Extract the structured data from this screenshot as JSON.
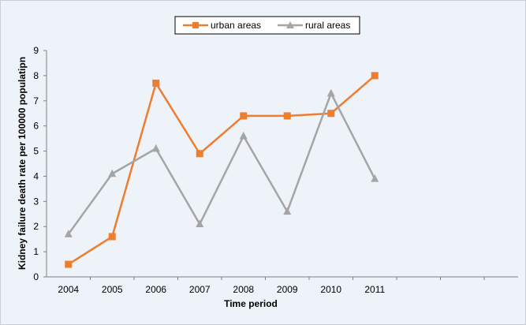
{
  "chart_data": {
    "type": "line",
    "categories": [
      "2004",
      "2005",
      "2006",
      "2007",
      "2008",
      "2009",
      "2010",
      "2011"
    ],
    "series": [
      {
        "name": "urban areas",
        "values": [
          0.5,
          1.6,
          7.7,
          4.9,
          6.4,
          6.4,
          6.5,
          8.0
        ],
        "color": "#ee7d2f",
        "marker": "square"
      },
      {
        "name": "rural areas",
        "values": [
          1.7,
          4.1,
          5.1,
          2.1,
          5.6,
          2.6,
          7.3,
          3.9
        ],
        "color": "#a5a5a5",
        "marker": "triangle"
      }
    ],
    "title": "",
    "xlabel": "Time period",
    "ylabel": "Kidney failure death rate per 100000 populatipn",
    "ylim": [
      0,
      9
    ],
    "yticks": [
      "0",
      "1",
      "2",
      "3",
      "4",
      "5",
      "6",
      "7",
      "8",
      "9"
    ],
    "grid": false,
    "legend_position": "top-center"
  }
}
